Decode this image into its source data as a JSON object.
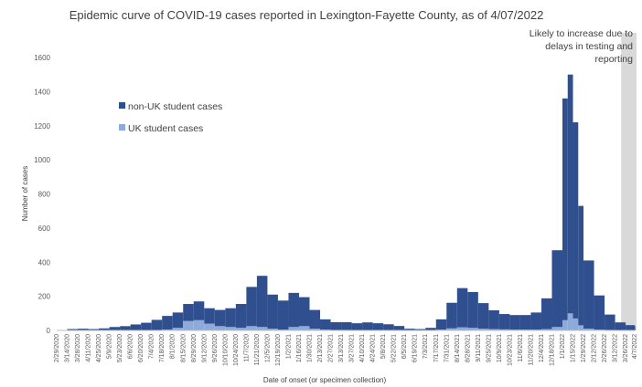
{
  "chart_data": {
    "type": "bar",
    "stacked": true,
    "title": "Epidemic curve of COVID-19 cases reported in Lexington-Fayette County, as of 4/07/2022",
    "xlabel": "Date of onset (or specimen collection)",
    "ylabel": "Number of cases",
    "ylim": [
      0,
      1600
    ],
    "yticks": [
      0,
      200,
      400,
      600,
      800,
      1000,
      1200,
      1400,
      1600
    ],
    "grid": false,
    "legend_position": "left",
    "annotation": "Likely to increase due to delays in testing and reporting",
    "annotation_lines": [
      "Likely to increase due to",
      "delays in testing and",
      "reporting"
    ],
    "shaded_region": {
      "start": "3/20/2022",
      "end": "4/7/2022"
    },
    "xtick_labels": [
      "2/29/2020",
      "3/14/2020",
      "3/28/2020",
      "4/11/2020",
      "4/25/2020",
      "5/9/2020",
      "5/23/2020",
      "6/6/2020",
      "6/20/2020",
      "7/4/2020",
      "7/18/2020",
      "8/1/2020",
      "8/15/2020",
      "8/29/2020",
      "9/12/2020",
      "9/26/2020",
      "10/10/2020",
      "10/24/2020",
      "11/7/2020",
      "11/21/2020",
      "12/5/2020",
      "12/19/2020",
      "1/2/2021",
      "1/16/2021",
      "1/30/2021",
      "2/13/2021",
      "2/27/2021",
      "3/13/2021",
      "3/27/2021",
      "4/10/2021",
      "4/24/2021",
      "5/8/2021",
      "5/22/2021",
      "6/5/2021",
      "6/19/2021",
      "7/3/2021",
      "7/17/2021",
      "7/31/2021",
      "8/14/2021",
      "8/28/2021",
      "9/11/2021",
      "9/25/2021",
      "10/9/2021",
      "10/23/2021",
      "11/6/2021",
      "11/20/2021",
      "12/4/2021",
      "12/18/2021",
      "1/1/2022",
      "1/15/2022",
      "1/29/2022",
      "2/12/2022",
      "2/26/2022",
      "3/12/2022",
      "3/26/2022",
      "4/7/2022"
    ],
    "series": [
      {
        "name": "non-UK student cases",
        "color": "#2f4f8f",
        "x": [
          "2/29/2020",
          "3/14/2020",
          "3/28/2020",
          "4/11/2020",
          "4/25/2020",
          "5/9/2020",
          "5/23/2020",
          "6/6/2020",
          "6/20/2020",
          "7/4/2020",
          "7/18/2020",
          "8/1/2020",
          "8/15/2020",
          "8/29/2020",
          "9/12/2020",
          "9/26/2020",
          "10/10/2020",
          "10/24/2020",
          "11/7/2020",
          "11/21/2020",
          "12/5/2020",
          "12/19/2020",
          "1/2/2021",
          "1/16/2021",
          "1/30/2021",
          "2/13/2021",
          "2/27/2021",
          "3/13/2021",
          "3/27/2021",
          "4/10/2021",
          "4/24/2021",
          "5/8/2021",
          "5/22/2021",
          "6/5/2021",
          "6/19/2021",
          "7/3/2021",
          "7/17/2021",
          "7/31/2021",
          "8/14/2021",
          "8/28/2021",
          "9/11/2021",
          "9/25/2021",
          "10/9/2021",
          "10/23/2021",
          "11/6/2021",
          "11/20/2021",
          "12/4/2021",
          "12/18/2021",
          "1/1/2022",
          "1/8/2022",
          "1/15/2022",
          "1/22/2022",
          "1/29/2022",
          "2/12/2022",
          "2/26/2022",
          "3/12/2022",
          "3/26/2022",
          "4/7/2022"
        ],
        "values": [
          2,
          8,
          10,
          8,
          12,
          20,
          25,
          35,
          45,
          60,
          80,
          90,
          100,
          110,
          90,
          95,
          110,
          140,
          230,
          300,
          200,
          170,
          200,
          170,
          110,
          60,
          45,
          45,
          40,
          45,
          40,
          35,
          25,
          10,
          8,
          15,
          60,
          150,
          230,
          210,
          150,
          110,
          90,
          85,
          85,
          100,
          180,
          450,
          1300,
          1400,
          1150,
          700,
          400,
          200,
          90,
          45,
          30,
          25
        ]
      },
      {
        "name": "UK student cases",
        "color": "#8eaadb",
        "x": [
          "2/29/2020",
          "3/14/2020",
          "3/28/2020",
          "4/11/2020",
          "4/25/2020",
          "5/9/2020",
          "5/23/2020",
          "6/6/2020",
          "6/20/2020",
          "7/4/2020",
          "7/18/2020",
          "8/1/2020",
          "8/15/2020",
          "8/29/2020",
          "9/12/2020",
          "9/26/2020",
          "10/10/2020",
          "10/24/2020",
          "11/7/2020",
          "11/21/2020",
          "12/5/2020",
          "12/19/2020",
          "1/2/2021",
          "1/16/2021",
          "1/30/2021",
          "2/13/2021",
          "2/27/2021",
          "3/13/2021",
          "3/27/2021",
          "4/10/2021",
          "4/24/2021",
          "5/8/2021",
          "5/22/2021",
          "6/5/2021",
          "6/19/2021",
          "7/3/2021",
          "7/17/2021",
          "7/31/2021",
          "8/14/2021",
          "8/28/2021",
          "9/11/2021",
          "9/25/2021",
          "10/9/2021",
          "10/23/2021",
          "11/6/2021",
          "11/20/2021",
          "12/4/2021",
          "12/18/2021",
          "1/1/2022",
          "1/8/2022",
          "1/15/2022",
          "1/22/2022",
          "1/29/2022",
          "2/12/2022",
          "2/26/2022",
          "3/12/2022",
          "3/26/2022",
          "4/7/2022"
        ],
        "values": [
          0,
          0,
          0,
          0,
          0,
          0,
          0,
          0,
          0,
          2,
          5,
          15,
          55,
          60,
          40,
          25,
          20,
          15,
          25,
          20,
          10,
          5,
          20,
          25,
          10,
          5,
          3,
          3,
          2,
          2,
          2,
          1,
          1,
          0,
          0,
          0,
          5,
          12,
          18,
          15,
          10,
          8,
          6,
          5,
          5,
          5,
          8,
          20,
          60,
          100,
          70,
          30,
          10,
          5,
          3,
          2,
          1,
          1
        ]
      }
    ]
  }
}
